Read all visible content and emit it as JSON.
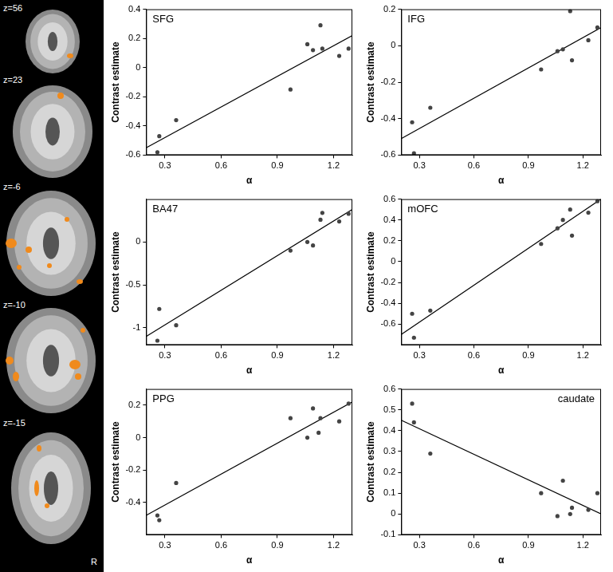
{
  "brain_slices": {
    "labels": [
      "z=56",
      "z=23",
      "z=-6",
      "z=-10",
      "z=-15"
    ],
    "orientation_label": "R"
  },
  "chart_data": [
    {
      "type": "scatter",
      "title": "SFG",
      "xlabel": "α",
      "ylabel": "Contrast estimate",
      "xlim": [
        0.2,
        1.3
      ],
      "xticks": [
        0.3,
        0.6,
        0.9,
        1.2
      ],
      "ylim": [
        -0.6,
        0.4
      ],
      "yticks": [
        -0.6,
        -0.4,
        -0.2,
        0,
        0.2,
        0.4
      ],
      "grid": false,
      "series": [
        {
          "type": "scatter",
          "marker": "circle",
          "color": "#444444",
          "x": [
            0.26,
            0.27,
            0.36,
            0.97,
            1.06,
            1.09,
            1.13,
            1.14,
            1.23,
            1.28
          ],
          "values": [
            -0.58,
            -0.47,
            -0.36,
            -0.15,
            0.16,
            0.12,
            0.29,
            0.13,
            0.08,
            0.13
          ]
        },
        {
          "type": "line",
          "line_style": "solid",
          "color": "#000000",
          "x": [
            0.2,
            1.3
          ],
          "values": [
            -0.55,
            0.22
          ]
        }
      ]
    },
    {
      "type": "scatter",
      "title": "IFG",
      "xlabel": "α",
      "ylabel": "Contrast estimate",
      "xlim": [
        0.2,
        1.3
      ],
      "xticks": [
        0.3,
        0.6,
        0.9,
        1.2
      ],
      "ylim": [
        -0.6,
        0.2
      ],
      "yticks": [
        -0.6,
        -0.4,
        -0.2,
        0,
        0.2
      ],
      "grid": false,
      "series": [
        {
          "type": "scatter",
          "marker": "circle",
          "color": "#444444",
          "x": [
            0.26,
            0.27,
            0.36,
            0.97,
            1.06,
            1.09,
            1.13,
            1.14,
            1.23,
            1.28
          ],
          "values": [
            -0.42,
            -0.59,
            -0.34,
            -0.13,
            -0.03,
            -0.02,
            0.19,
            -0.08,
            0.03,
            0.1
          ]
        },
        {
          "type": "line",
          "line_style": "solid",
          "color": "#000000",
          "x": [
            0.2,
            1.3
          ],
          "values": [
            -0.51,
            0.1
          ]
        }
      ]
    },
    {
      "type": "scatter",
      "title": "BA47",
      "xlabel": "α",
      "ylabel": "Contrast estimate",
      "xlim": [
        0.2,
        1.3
      ],
      "xticks": [
        0.3,
        0.6,
        0.9,
        1.2
      ],
      "ylim": [
        -1.2,
        0.5
      ],
      "yticks": [
        -1,
        -0.5,
        0
      ],
      "grid": false,
      "series": [
        {
          "type": "scatter",
          "marker": "circle",
          "color": "#444444",
          "x": [
            0.26,
            0.27,
            0.36,
            0.97,
            1.06,
            1.09,
            1.13,
            1.14,
            1.23,
            1.28
          ],
          "values": [
            -1.15,
            -0.78,
            -0.97,
            -0.1,
            0.0,
            -0.04,
            0.26,
            0.34,
            0.24,
            0.33
          ]
        },
        {
          "type": "line",
          "line_style": "solid",
          "color": "#000000",
          "x": [
            0.2,
            1.3
          ],
          "values": [
            -1.1,
            0.38
          ]
        }
      ]
    },
    {
      "type": "scatter",
      "title": "mOFC",
      "xlabel": "α",
      "ylabel": "Contrast estimate",
      "xlim": [
        0.2,
        1.3
      ],
      "xticks": [
        0.3,
        0.6,
        0.9,
        1.2
      ],
      "ylim": [
        -0.8,
        0.6
      ],
      "yticks": [
        -0.6,
        -0.4,
        -0.2,
        0,
        0.2,
        0.4,
        0.6
      ],
      "grid": false,
      "series": [
        {
          "type": "scatter",
          "marker": "circle",
          "color": "#444444",
          "x": [
            0.26,
            0.27,
            0.36,
            0.97,
            1.06,
            1.09,
            1.13,
            1.14,
            1.23,
            1.28
          ],
          "values": [
            -0.5,
            -0.73,
            -0.47,
            0.17,
            0.32,
            0.4,
            0.5,
            0.25,
            0.47,
            0.58
          ]
        },
        {
          "type": "line",
          "line_style": "solid",
          "color": "#000000",
          "x": [
            0.2,
            1.3
          ],
          "values": [
            -0.7,
            0.6
          ]
        }
      ]
    },
    {
      "type": "scatter",
      "title": "PPG",
      "xlabel": "α",
      "ylabel": "Contrast estimate",
      "xlim": [
        0.2,
        1.3
      ],
      "xticks": [
        0.3,
        0.6,
        0.9,
        1.2
      ],
      "ylim": [
        -0.6,
        0.3
      ],
      "yticks": [
        -0.4,
        -0.2,
        0,
        0.2
      ],
      "grid": false,
      "series": [
        {
          "type": "scatter",
          "marker": "circle",
          "color": "#444444",
          "x": [
            0.26,
            0.27,
            0.36,
            0.97,
            1.06,
            1.09,
            1.12,
            1.13,
            1.23,
            1.28
          ],
          "values": [
            -0.48,
            -0.51,
            -0.28,
            0.12,
            0.0,
            0.18,
            0.03,
            0.12,
            0.1,
            0.21
          ]
        },
        {
          "type": "line",
          "line_style": "solid",
          "color": "#000000",
          "x": [
            0.2,
            1.3
          ],
          "values": [
            -0.48,
            0.22
          ]
        }
      ]
    },
    {
      "type": "scatter",
      "title": "caudate",
      "xlabel": "α",
      "ylabel": "Contrast estimate",
      "xlim": [
        0.2,
        1.3
      ],
      "xticks": [
        0.3,
        0.6,
        0.9,
        1.2
      ],
      "ylim": [
        -0.1,
        0.6
      ],
      "yticks": [
        -0.1,
        0,
        0.1,
        0.2,
        0.3,
        0.4,
        0.5,
        0.6
      ],
      "grid": false,
      "series": [
        {
          "type": "scatter",
          "marker": "circle",
          "color": "#444444",
          "x": [
            0.26,
            0.27,
            0.36,
            0.97,
            1.06,
            1.09,
            1.13,
            1.14,
            1.23,
            1.28
          ],
          "values": [
            0.53,
            0.44,
            0.29,
            0.1,
            -0.01,
            0.16,
            0.0,
            0.03,
            0.02,
            0.1
          ]
        },
        {
          "type": "line",
          "line_style": "solid",
          "color": "#000000",
          "x": [
            0.2,
            1.3
          ],
          "values": [
            0.45,
            0.0
          ]
        }
      ]
    }
  ]
}
